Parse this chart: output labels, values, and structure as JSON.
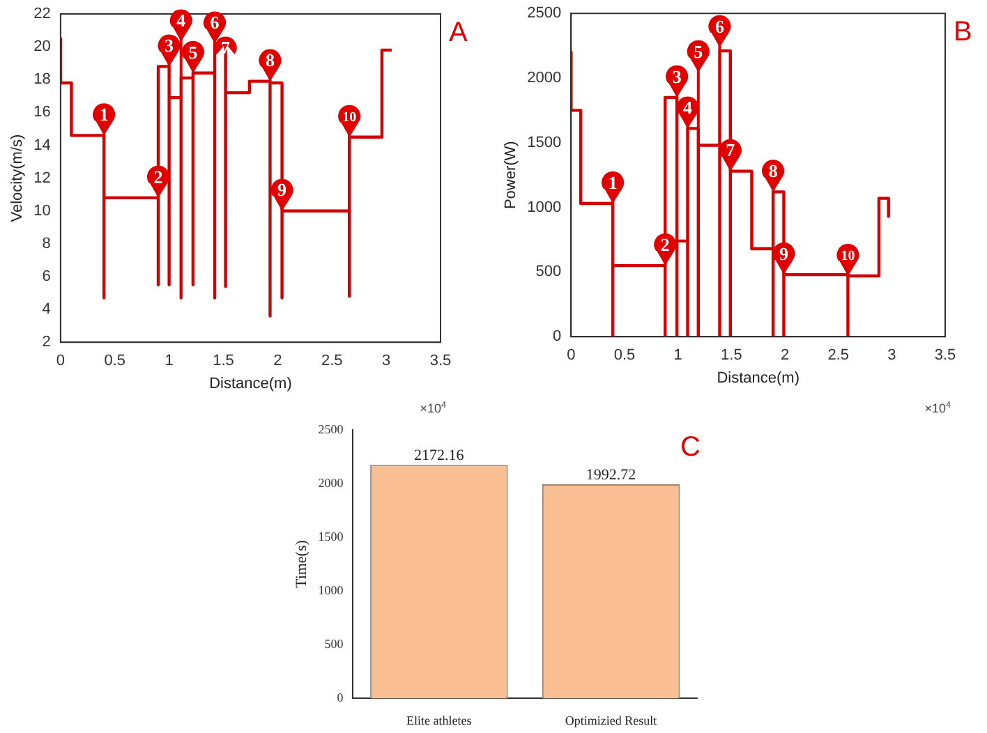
{
  "chart_data": [
    {
      "type": "line",
      "title": "A",
      "xlabel": "Distance(m)",
      "ylabel": "Velocity(m/s)",
      "xlim": [
        0,
        3.5
      ],
      "xticks": [
        0,
        0.5,
        1,
        1.5,
        2,
        2.5,
        3,
        3.5
      ],
      "ylim": [
        2,
        22
      ],
      "yticks": [
        2,
        4,
        6,
        8,
        10,
        12,
        14,
        16,
        18,
        20,
        22
      ],
      "grid": false,
      "legend": false,
      "series": [
        {
          "color": "#d40000",
          "x": [
            0,
            0,
            0.1,
            0.1,
            0.4,
            0.4,
            0.4,
            0.9,
            0.9,
            0.9,
            1.0,
            1.0,
            1.0,
            1.11,
            1.11,
            1.11,
            1.22,
            1.22,
            1.22,
            1.42,
            1.42,
            1.42,
            1.52,
            1.52,
            1.52,
            1.74,
            1.74,
            1.93,
            1.93,
            1.93,
            2.04,
            2.04,
            2.04,
            2.66,
            2.66,
            2.66,
            2.96,
            2.96,
            3.05
          ],
          "values": [
            20.5,
            17.8,
            17.8,
            14.6,
            14.6,
            4.7,
            10.8,
            10.8,
            5.5,
            18.8,
            18.8,
            5.5,
            16.9,
            16.9,
            4.7,
            18.1,
            18.1,
            5.5,
            18.4,
            18.4,
            4.7,
            20.2,
            20.2,
            5.4,
            17.2,
            17.2,
            17.9,
            17.9,
            3.6,
            17.8,
            17.8,
            4.7,
            10.0,
            10.0,
            4.8,
            14.5,
            14.5,
            19.8,
            19.8
          ]
        }
      ],
      "annotations": [
        {
          "text": "1",
          "x": 0.4,
          "y": 14.6
        },
        {
          "text": "2",
          "x": 0.9,
          "y": 10.8
        },
        {
          "text": "3",
          "x": 1.0,
          "y": 18.8
        },
        {
          "text": "4",
          "x": 1.11,
          "y": 18.1
        },
        {
          "text": "5",
          "x": 1.22,
          "y": 18.4
        },
        {
          "text": "6",
          "x": 1.42,
          "y": 20.2
        },
        {
          "text": "7",
          "x": 1.52,
          "y": 20.2
        },
        {
          "text": "8",
          "x": 1.93,
          "y": 17.9
        },
        {
          "text": "9",
          "x": 2.04,
          "y": 10.0
        },
        {
          "text": "10",
          "x": 2.66,
          "y": 14.5
        },
        "×10$^{4}$"
      ]
    },
    {
      "type": "line",
      "title": "B",
      "xlabel": "Distance(m)",
      "ylabel": "Power(W)",
      "xlim": [
        0,
        3.5
      ],
      "xticks": [
        0,
        0.5,
        1,
        1.5,
        2,
        2.5,
        3,
        3.5
      ],
      "ylim": [
        0,
        2500
      ],
      "yticks": [
        0,
        500,
        1000,
        1500,
        2000,
        2500
      ],
      "grid": false,
      "legend": false,
      "series": [
        {
          "color": "#d40000",
          "x": [
            0,
            0,
            0.09,
            0.09,
            0.39,
            0.39,
            0.39,
            0.88,
            0.88,
            0.88,
            0.99,
            0.99,
            0.99,
            1.09,
            1.09,
            1.09,
            1.19,
            1.19,
            1.19,
            1.39,
            1.39,
            1.39,
            1.49,
            1.49,
            1.49,
            1.69,
            1.69,
            1.89,
            1.89,
            1.89,
            1.99,
            1.99,
            1.99,
            2.59,
            2.59,
            2.59,
            2.88,
            2.88,
            2.97,
            2.97
          ],
          "values": [
            2200,
            1750,
            1750,
            1030,
            1030,
            0,
            550,
            550,
            0,
            1850,
            1850,
            0,
            740,
            740,
            0,
            1610,
            1610,
            0,
            1480,
            1480,
            0,
            2210,
            2210,
            0,
            1280,
            1280,
            680,
            680,
            0,
            1120,
            1120,
            0,
            480,
            480,
            0,
            470,
            470,
            1070,
            1070,
            930
          ]
        }
      ],
      "annotations": [
        {
          "text": "1",
          "x": 0.39,
          "y": 1030
        },
        {
          "text": "2",
          "x": 0.88,
          "y": 550
        },
        {
          "text": "3",
          "x": 0.99,
          "y": 1850
        },
        {
          "text": "4",
          "x": 1.09,
          "y": 1610
        },
        {
          "text": "5",
          "x": 1.19,
          "y": 1610
        },
        {
          "text": "6",
          "x": 1.39,
          "y": 2210
        },
        {
          "text": "7",
          "x": 1.49,
          "y": 1280
        },
        {
          "text": "8",
          "x": 1.89,
          "y": 1120
        },
        {
          "text": "9",
          "x": 1.99,
          "y": 480
        },
        {
          "text": "10",
          "x": 2.59,
          "y": 470
        },
        "×10$^{4}$"
      ]
    },
    {
      "type": "bar",
      "title": "C",
      "ylabel": "Time(s)",
      "categories": [
        "Elite athletes",
        "Optimizied Result"
      ],
      "values": [
        2172.16,
        1992.72
      ],
      "color": "#f9be92",
      "ylim": [
        0,
        2500
      ],
      "yticks": [
        0,
        500,
        1000,
        1500,
        2000,
        2500
      ],
      "grid": false,
      "legend": false,
      "data_labels": true
    }
  ]
}
